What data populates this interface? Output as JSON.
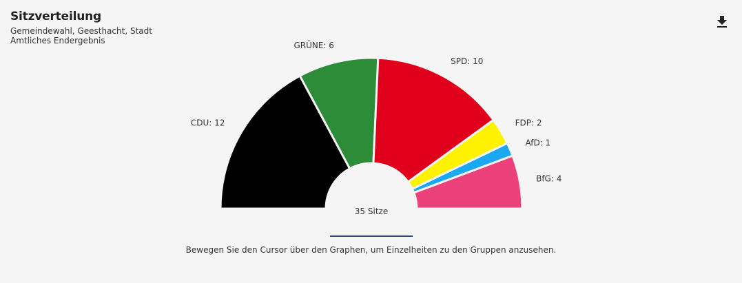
{
  "header": {
    "title": "Sitzverteilung",
    "subtitle_1": "Gemeindewahl, Geesthacht, Stadt",
    "subtitle_2": "Amtliches Endergebnis",
    "download_icon": "download-icon"
  },
  "chart_data": {
    "type": "pie",
    "variant": "semicircle-donut",
    "total_label": "35 Sitze",
    "total": 35,
    "slices": [
      {
        "label": "CDU: 12",
        "name": "CDU",
        "value": 12,
        "color": "#000000"
      },
      {
        "label": "GRÜNE: 6",
        "name": "GRÜNE",
        "value": 6,
        "color": "#2d8c37"
      },
      {
        "label": "SPD: 10",
        "name": "SPD",
        "value": 10,
        "color": "#e0001b"
      },
      {
        "label": "FDP: 2",
        "name": "FDP",
        "value": 2,
        "color": "#fff200"
      },
      {
        "label": "AfD: 1",
        "name": "AfD",
        "value": 1,
        "color": "#1aa8f0"
      },
      {
        "label": "BfG: 4",
        "name": "BfG",
        "value": 4,
        "color": "#ec407a"
      }
    ]
  },
  "footer": {
    "hint": "Bewegen Sie den Cursor über den Graphen, um Einzelheiten zu den Gruppen anzusehen."
  }
}
